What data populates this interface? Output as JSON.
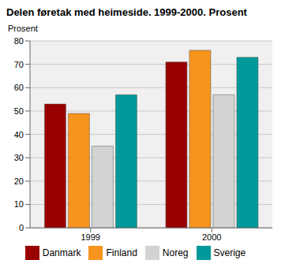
{
  "chart_data": {
    "type": "bar",
    "title": "Delen føretak med heimeside. 1999-2000. Prosent",
    "ylabel": "Prosent",
    "categories": [
      "1999",
      "2000"
    ],
    "series": [
      {
        "name": "Danmark",
        "color": "#990000",
        "values": [
          53,
          71
        ]
      },
      {
        "name": "Finland",
        "color": "#f7941d",
        "values": [
          49,
          76
        ]
      },
      {
        "name": "Noreg",
        "color": "#d3d3d3",
        "values": [
          35,
          57
        ]
      },
      {
        "name": "Sverige",
        "color": "#009999",
        "values": [
          57,
          73
        ]
      }
    ],
    "ylim": [
      0,
      80
    ],
    "yticks": [
      0,
      10,
      20,
      30,
      40,
      50,
      60,
      70,
      80
    ],
    "grid": true,
    "legend": "bottom"
  }
}
